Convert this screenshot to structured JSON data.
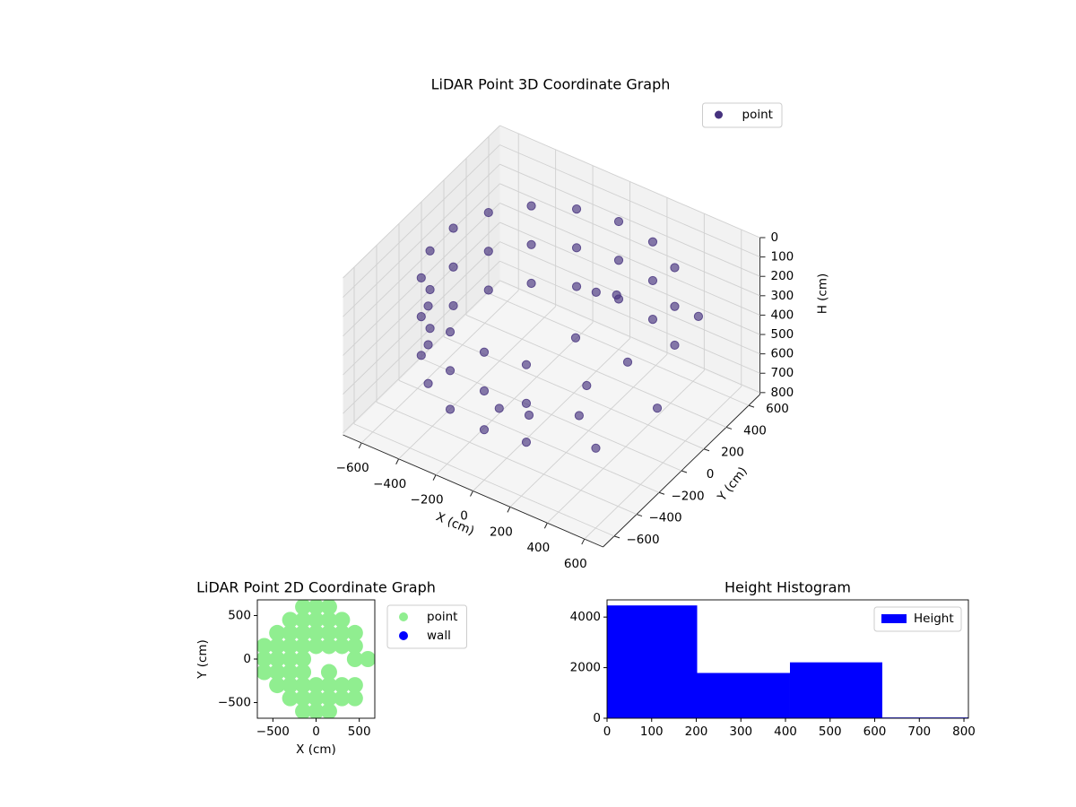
{
  "chart_data": [
    {
      "type": "scatter3d",
      "title": "LiDAR Point 3D Coordinate Graph",
      "xlabel": "X (cm)",
      "ylabel": "Y (cm)",
      "zlabel": "H (cm)",
      "series": [
        {
          "name": "point",
          "color": "#46327e",
          "x": [
            386,
            386,
            386,
            205,
            205,
            205,
            0,
            0,
            0,
            -205,
            -205,
            -205,
            -386,
            -386,
            -386,
            -520,
            -520,
            -520,
            -591,
            -591,
            -591,
            -591,
            -591,
            -591,
            -520,
            -520,
            -520,
            -386,
            -386,
            -386,
            -205,
            -205,
            -205,
            0,
            0,
            0,
            205,
            205,
            205,
            150,
            200,
            100,
            250,
            350,
            550,
            600,
            450,
            0,
            -100,
            300
          ],
          "y": [
            460,
            460,
            460,
            564,
            564,
            564,
            600,
            600,
            600,
            564,
            564,
            564,
            460,
            460,
            460,
            300,
            300,
            300,
            104,
            104,
            104,
            -104,
            -104,
            -104,
            -300,
            -300,
            -300,
            -460,
            -460,
            -460,
            -564,
            -564,
            -564,
            -600,
            -600,
            -600,
            -564,
            -564,
            -564,
            150,
            250,
            50,
            -100,
            100,
            400,
            -50,
            -350,
            -200,
            -300,
            -250
          ],
          "z": [
            150,
            350,
            550,
            150,
            350,
            550,
            150,
            350,
            550,
            150,
            350,
            550,
            150,
            350,
            550,
            150,
            350,
            550,
            150,
            350,
            550,
            150,
            350,
            550,
            150,
            350,
            550,
            150,
            350,
            550,
            150,
            350,
            550,
            150,
            350,
            550,
            150,
            350,
            550,
            200,
            250,
            400,
            500,
            450,
            300,
            500,
            600,
            700,
            650,
            550
          ]
        }
      ],
      "xlim": [
        -700,
        700
      ],
      "ylim": [
        -700,
        700
      ],
      "zlim": [
        0,
        810
      ],
      "z_inverted": true,
      "xticks": [
        {
          "value": -600,
          "label": "−600"
        },
        {
          "value": -400,
          "label": "−400"
        },
        {
          "value": -200,
          "label": "−200"
        },
        0,
        200,
        400,
        600
      ],
      "yticks": [
        {
          "value": -600,
          "label": "−600"
        },
        {
          "value": -400,
          "label": "−400"
        },
        {
          "value": -200,
          "label": "−200"
        },
        0,
        200,
        400,
        600
      ],
      "zticks": [
        0,
        100,
        200,
        300,
        400,
        500,
        600,
        700,
        800
      ],
      "legend": "upper right",
      "grid": true
    },
    {
      "type": "scatter",
      "title": "LiDAR Point 2D Coordinate Graph",
      "xlabel": "X (cm)",
      "ylabel": "Y (cm)",
      "series": [
        {
          "name": "point",
          "color": "#90ee90",
          "x": [
            -150,
            0,
            150,
            -300,
            -150,
            0,
            150,
            300,
            -450,
            -300,
            -150,
            0,
            150,
            300,
            450,
            -600,
            -450,
            -300,
            -150,
            0,
            150,
            300,
            450,
            -600,
            -450,
            -300,
            -150,
            450,
            600,
            -600,
            -450,
            -300,
            -150,
            150,
            -450,
            -300,
            -150,
            0,
            150,
            300,
            450,
            -300,
            -150,
            0,
            150,
            300,
            450,
            -150,
            0,
            150
          ],
          "y": [
            600,
            600,
            600,
            450,
            450,
            450,
            450,
            450,
            300,
            300,
            300,
            300,
            300,
            300,
            300,
            150,
            150,
            150,
            150,
            150,
            150,
            150,
            150,
            0,
            0,
            0,
            0,
            0,
            0,
            -150,
            -150,
            -150,
            -150,
            -150,
            -300,
            -300,
            -300,
            -300,
            -300,
            -300,
            -300,
            -450,
            -450,
            -450,
            -450,
            -450,
            -450,
            -600,
            -600,
            -600
          ]
        },
        {
          "name": "wall",
          "color": "#0000ff",
          "x": [],
          "y": []
        }
      ],
      "xlim": [
        -680,
        680
      ],
      "ylim": [
        -680,
        680
      ],
      "xticks": [
        {
          "value": -500,
          "label": "−500"
        },
        0,
        500
      ],
      "yticks": [
        {
          "value": -500,
          "label": "−500"
        },
        0,
        500
      ],
      "legend": "outside right"
    },
    {
      "type": "histogram",
      "title": "Height Histogram",
      "bins": [
        0,
        202,
        410,
        617,
        810
      ],
      "series": [
        {
          "name": "Height",
          "color": "#0000ff",
          "values": [
            4460,
            1790,
            2210,
            30
          ]
        }
      ],
      "xlim": [
        0,
        810
      ],
      "ylim": [
        0,
        4680
      ],
      "xticks": [
        0,
        100,
        200,
        300,
        400,
        500,
        600,
        700,
        800
      ],
      "yticks": [
        0,
        2000,
        4000
      ],
      "legend": "upper right"
    }
  ]
}
